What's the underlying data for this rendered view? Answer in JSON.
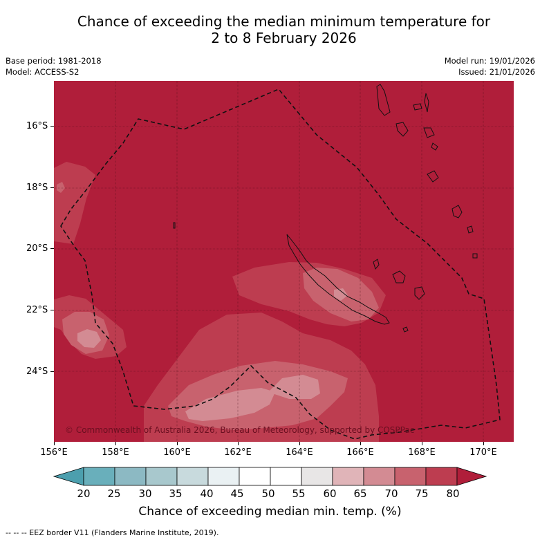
{
  "header": {
    "title_line1": "Chance of exceeding the median minimum temperature for",
    "title_line2": "2 to 8 February 2026",
    "base_period": "Base period: 1981-2018",
    "model": "Model: ACCESS-S2",
    "model_run": "Model run: 19/01/2026",
    "issued": "Issued: 21/01/2026"
  },
  "map": {
    "lat_labels": [
      "16°S",
      "18°S",
      "20°S",
      "22°S",
      "24°S"
    ],
    "lon_labels": [
      "156°E",
      "158°E",
      "160°E",
      "162°E",
      "164°E",
      "166°E",
      "168°E",
      "170°E"
    ],
    "copyright": "© Commonwealth of Australia 2026, Bureau of Meteorology, supported by COSPPac",
    "background_color": "#b01e3a",
    "coast_color": "#111111",
    "eez_color": "#111111"
  },
  "colorbar": {
    "labels": [
      "20",
      "25",
      "30",
      "35",
      "40",
      "45",
      "50",
      "55",
      "60",
      "65",
      "70",
      "75",
      "80"
    ],
    "colors": [
      "#69afbb",
      "#8cb9c3",
      "#a8c8cd",
      "#c8dadd",
      "#eaf1f3",
      "#ffffff",
      "#ffffff",
      "#e8e6e6",
      "#e0b4b8",
      "#d38b93",
      "#c8626e",
      "#bd3d50"
    ],
    "under_color": "#4c9fae",
    "over_color": "#b01e3a",
    "title": "Chance of exceeding median min. temp. (%)"
  },
  "footer": {
    "legend": "--  --  -- EEZ border V11 (Flanders Marine Institute, 2019)."
  }
}
